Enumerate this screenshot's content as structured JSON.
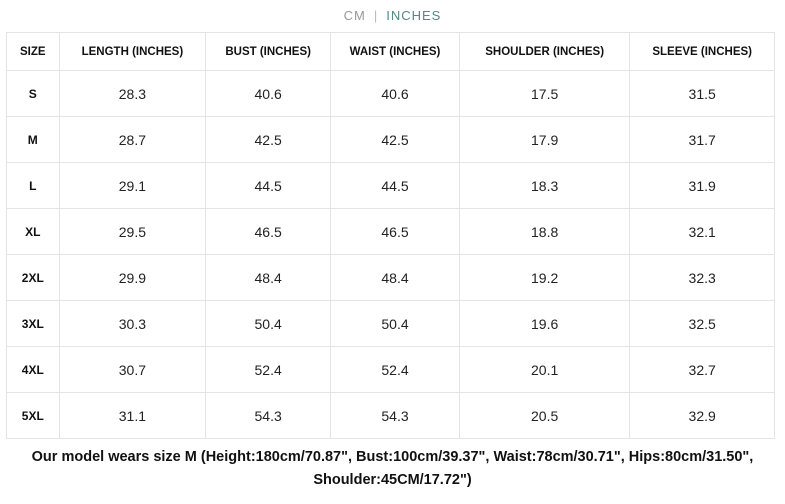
{
  "units": {
    "cm": "CM",
    "separator": "|",
    "inches": "INCHES",
    "active": "INCHES"
  },
  "table": {
    "headers": [
      "SIZE",
      "LENGTH (INCHES)",
      "BUST (INCHES)",
      "WAIST (INCHES)",
      "SHOULDER (INCHES)",
      "SLEEVE (INCHES)"
    ],
    "rows": [
      [
        "S",
        "28.3",
        "40.6",
        "40.6",
        "17.5",
        "31.5"
      ],
      [
        "M",
        "28.7",
        "42.5",
        "42.5",
        "17.9",
        "31.7"
      ],
      [
        "L",
        "29.1",
        "44.5",
        "44.5",
        "18.3",
        "31.9"
      ],
      [
        "XL",
        "29.5",
        "46.5",
        "46.5",
        "18.8",
        "32.1"
      ],
      [
        "2XL",
        "29.9",
        "48.4",
        "48.4",
        "19.2",
        "32.3"
      ],
      [
        "3XL",
        "30.3",
        "50.4",
        "50.4",
        "19.6",
        "32.5"
      ],
      [
        "4XL",
        "30.7",
        "52.4",
        "52.4",
        "20.1",
        "32.7"
      ],
      [
        "5XL",
        "31.1",
        "54.3",
        "54.3",
        "20.5",
        "32.9"
      ]
    ]
  },
  "note": "Our model wears size M (Height:180cm/70.87\", Bust:100cm/39.37\", Waist:78cm/30.71\", Hips:80cm/31.50\", Shoulder:45CM/17.72\")"
}
